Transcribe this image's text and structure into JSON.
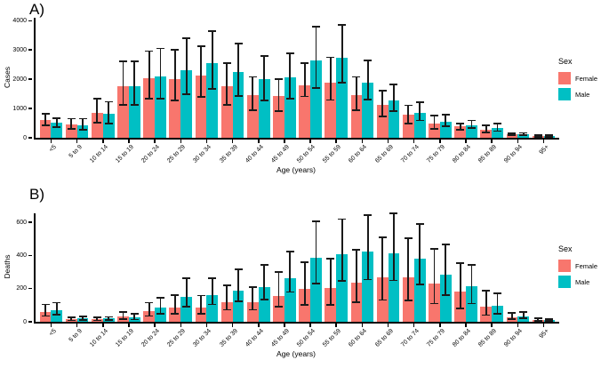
{
  "figure": {
    "background": "#ffffff",
    "axis_color": "#000000",
    "error_bar_color": "#1a1a1a"
  },
  "chart_data": [
    {
      "panel_label": "A)",
      "type": "bar",
      "ylabel": "Cases",
      "xlabel": "Age (years)",
      "ylim": [
        0,
        4100
      ],
      "yticks": [
        0,
        1000,
        2000,
        3000,
        4000
      ],
      "grid": false,
      "legend_title": "Sex",
      "legend_position": "right",
      "categories": [
        "<5",
        "5 to 9",
        "10 to 14",
        "15 to 19",
        "20 to 24",
        "25 to 29",
        "30 to 34",
        "35 to 39",
        "40 to 44",
        "45 to 49",
        "50 to 54",
        "55 to 59",
        "60 to 64",
        "65 to 69",
        "70 to 74",
        "75 to 79",
        "80 to 84",
        "85 to 89",
        "90 to 94",
        "95+"
      ],
      "series": [
        {
          "name": "Female",
          "color": "#F8766D",
          "values": [
            600,
            470,
            850,
            1750,
            2030,
            2010,
            2130,
            1770,
            1460,
            1420,
            1800,
            1880,
            1460,
            1110,
            800,
            490,
            390,
            280,
            120,
            60
          ],
          "err_low": [
            420,
            300,
            520,
            1130,
            1330,
            1270,
            1390,
            1130,
            950,
            900,
            1410,
            1290,
            950,
            720,
            490,
            310,
            280,
            180,
            80,
            30
          ],
          "err_high": [
            830,
            650,
            1330,
            2620,
            2960,
            3000,
            3130,
            2540,
            2080,
            2000,
            2540,
            2750,
            2080,
            1600,
            1110,
            750,
            490,
            430,
            160,
            90
          ]
        },
        {
          "name": "Male",
          "color": "#00BFC4",
          "values": [
            520,
            430,
            810,
            1770,
            2090,
            2310,
            2560,
            2250,
            2010,
            2060,
            2650,
            2730,
            1880,
            1290,
            850,
            540,
            440,
            340,
            130,
            70
          ],
          "err_low": [
            360,
            270,
            480,
            1120,
            1330,
            1480,
            1670,
            1420,
            1270,
            1340,
            1700,
            1880,
            1310,
            900,
            590,
            390,
            340,
            230,
            90,
            40
          ],
          "err_high": [
            660,
            650,
            1230,
            2610,
            3050,
            3410,
            3650,
            3210,
            2790,
            2890,
            3790,
            3860,
            2650,
            1830,
            1210,
            780,
            590,
            490,
            170,
            100
          ]
        }
      ]
    },
    {
      "panel_label": "B)",
      "type": "bar",
      "ylabel": "Deaths",
      "xlabel": "Age (years)",
      "ylim": [
        0,
        655
      ],
      "yticks": [
        0,
        200,
        400,
        600
      ],
      "grid": false,
      "legend_title": "Sex",
      "legend_position": "right",
      "categories": [
        "<5",
        "5 to 9",
        "10 to 14",
        "15 to 19",
        "20 to 24",
        "25 to 29",
        "30 to 34",
        "35 to 39",
        "40 to 44",
        "45 to 49",
        "50 to 54",
        "55 to 59",
        "60 to 64",
        "65 to 69",
        "70 to 74",
        "75 to 79",
        "80 to 84",
        "85 to 89",
        "90 to 94",
        "95+"
      ],
      "series": [
        {
          "name": "Female",
          "color": "#F8766D",
          "values": [
            60,
            16,
            16,
            34,
            62,
            88,
            86,
            120,
            118,
            155,
            198,
            205,
            235,
            270,
            269,
            230,
            180,
            91,
            26,
            12
          ],
          "err_low": [
            35,
            8,
            8,
            16,
            35,
            50,
            50,
            73,
            73,
            90,
            100,
            103,
            118,
            132,
            127,
            110,
            82,
            40,
            15,
            5
          ],
          "err_high": [
            105,
            26,
            26,
            58,
            115,
            160,
            158,
            220,
            210,
            300,
            358,
            380,
            435,
            510,
            505,
            440,
            355,
            190,
            52,
            22
          ]
        },
        {
          "name": "Male",
          "color": "#00BFC4",
          "values": [
            72,
            21,
            20,
            27,
            84,
            150,
            162,
            188,
            208,
            262,
            385,
            408,
            422,
            412,
            382,
            287,
            216,
            96,
            33,
            10
          ],
          "err_low": [
            42,
            10,
            10,
            13,
            47,
            93,
            105,
            125,
            135,
            180,
            230,
            246,
            255,
            250,
            225,
            162,
            110,
            50,
            20,
            4
          ],
          "err_high": [
            115,
            32,
            30,
            48,
            145,
            265,
            265,
            315,
            345,
            425,
            605,
            620,
            645,
            655,
            590,
            465,
            342,
            170,
            60,
            18
          ]
        }
      ]
    }
  ]
}
